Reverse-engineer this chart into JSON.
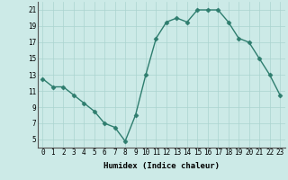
{
  "x": [
    0,
    1,
    2,
    3,
    4,
    5,
    6,
    7,
    8,
    9,
    10,
    11,
    12,
    13,
    14,
    15,
    16,
    17,
    18,
    19,
    20,
    21,
    22,
    23
  ],
  "y": [
    12.5,
    11.5,
    11.5,
    10.5,
    9.5,
    8.5,
    7.0,
    6.5,
    4.8,
    8.0,
    13.0,
    17.5,
    19.5,
    20.0,
    19.5,
    21.0,
    21.0,
    21.0,
    19.5,
    17.5,
    17.0,
    15.0,
    13.0,
    10.5
  ],
  "line_color": "#2e7d6e",
  "marker": "D",
  "marker_size": 2.5,
  "bg_color": "#cceae7",
  "grid_color": "#aad4d0",
  "xlabel": "Humidex (Indice chaleur)",
  "ylim": [
    4,
    22
  ],
  "xlim": [
    -0.5,
    23.5
  ],
  "yticks": [
    5,
    7,
    9,
    11,
    13,
    15,
    17,
    19,
    21
  ],
  "xticks": [
    0,
    1,
    2,
    3,
    4,
    5,
    6,
    7,
    8,
    9,
    10,
    11,
    12,
    13,
    14,
    15,
    16,
    17,
    18,
    19,
    20,
    21,
    22,
    23
  ],
  "xtick_labels": [
    "0",
    "1",
    "2",
    "3",
    "4",
    "5",
    "6",
    "7",
    "8",
    "9",
    "10",
    "11",
    "12",
    "13",
    "14",
    "15",
    "16",
    "17",
    "18",
    "19",
    "20",
    "21",
    "22",
    "23"
  ],
  "label_fontsize": 6.5,
  "tick_fontsize": 5.5,
  "line_width": 1.0
}
